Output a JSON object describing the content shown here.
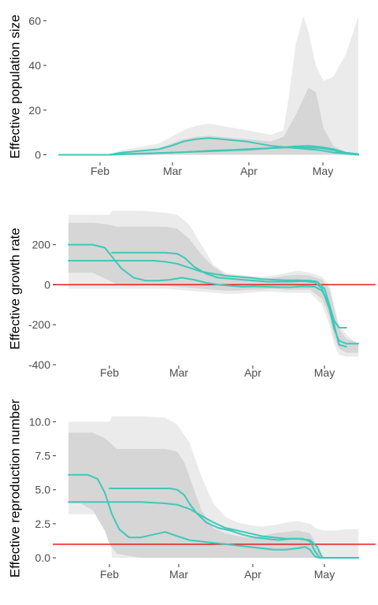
{
  "colors": {
    "line": "#3ec8b8",
    "ribbon_outer": "#ebebeb",
    "ribbon_inner": "#d6d6d6",
    "reference": "#e41a1c"
  },
  "chart_data": [
    {
      "type": "line",
      "ylabel": "Effective population size",
      "x_tick_labels": [
        "Feb",
        "Mar",
        "Apr",
        "May"
      ],
      "y_ticks": [
        0,
        20,
        40,
        60
      ],
      "ylim": [
        -3,
        64
      ],
      "grid": false,
      "reference_line": null,
      "series": [
        {
          "x": [
            0,
            10,
            20,
            25,
            30,
            35,
            40,
            45,
            50,
            55,
            60,
            65,
            70,
            75,
            80,
            85,
            90,
            95,
            100,
            105,
            110,
            115,
            120
          ],
          "y": [
            0,
            0,
            0,
            0.2,
            0.3,
            0.5,
            0.8,
            1,
            1.2,
            1.5,
            1.8,
            2,
            2.2,
            2.5,
            2.8,
            3,
            3.2,
            3.3,
            3.2,
            3,
            2,
            0.5,
            0
          ]
        },
        {
          "x": [
            0,
            10,
            20,
            25,
            30,
            35,
            40,
            45,
            50,
            55,
            60,
            65,
            70,
            75,
            80,
            85,
            90,
            95,
            100,
            105,
            110,
            115,
            120
          ],
          "y": [
            0,
            0,
            0,
            1,
            1.5,
            2,
            2.5,
            4,
            6,
            7,
            7.5,
            7,
            6.5,
            6,
            5,
            4,
            3.5,
            3,
            2.5,
            2,
            1,
            0.5,
            0
          ]
        },
        {
          "x": [
            0,
            10,
            20,
            25,
            30,
            35,
            40,
            45,
            50,
            55,
            60,
            65,
            70,
            75,
            80,
            85,
            90,
            95,
            100,
            105,
            110,
            115,
            120
          ],
          "y": [
            0,
            0,
            0,
            0.3,
            0.5,
            0.6,
            0.8,
            1,
            1.2,
            1.4,
            1.6,
            1.8,
            2,
            2.2,
            2.6,
            3,
            3.4,
            3.8,
            4,
            3.5,
            2.5,
            1,
            0.3
          ]
        }
      ],
      "ribbons": [
        {
          "layer": "outer",
          "x": [
            0,
            10,
            20,
            25,
            30,
            35,
            40,
            45,
            50,
            55,
            60,
            65,
            70,
            75,
            80,
            85,
            90,
            92,
            95,
            98,
            100,
            103,
            106,
            110,
            115,
            120
          ],
          "upper": [
            0,
            0,
            0,
            2,
            3,
            4,
            5,
            8,
            11,
            13,
            14,
            13,
            12,
            11,
            10,
            9,
            11,
            25,
            50,
            62,
            55,
            40,
            33,
            35,
            45,
            62
          ],
          "lower": [
            0,
            0,
            0,
            0,
            0,
            0,
            0,
            0,
            0,
            0,
            0,
            0,
            0,
            0,
            0,
            0,
            0,
            0,
            0,
            0,
            0,
            0,
            0,
            0,
            0,
            0
          ]
        },
        {
          "layer": "inner",
          "x": [
            0,
            10,
            20,
            25,
            30,
            35,
            40,
            45,
            50,
            55,
            60,
            65,
            70,
            75,
            80,
            85,
            90,
            95,
            100,
            103,
            106,
            110,
            115,
            120
          ],
          "upper": [
            0,
            0,
            0,
            1,
            1.5,
            2,
            3,
            5,
            7,
            8,
            8.5,
            8,
            7.5,
            7,
            6.5,
            6,
            8,
            18,
            30,
            28,
            12,
            4,
            1,
            0
          ],
          "lower": [
            0,
            0,
            0,
            0,
            0,
            0,
            0,
            0,
            0,
            0,
            0,
            0,
            0,
            0,
            0,
            0,
            0,
            0,
            0,
            0,
            0,
            0,
            0,
            0
          ]
        }
      ]
    },
    {
      "type": "line",
      "ylabel": "Effective growth rate",
      "x_tick_labels": [
        "Feb",
        "Mar",
        "Apr",
        "May"
      ],
      "y_ticks": [
        -400,
        -200,
        0,
        200
      ],
      "ylim": [
        -400,
        360
      ],
      "grid": false,
      "reference_line": {
        "y": 0
      },
      "series": [
        {
          "x": [
            0,
            5,
            10,
            15,
            18,
            22,
            27,
            32,
            37,
            42,
            47,
            52,
            57,
            62,
            67,
            72,
            77,
            82,
            87,
            92,
            97,
            102,
            105,
            108,
            110,
            112,
            115
          ],
          "y": [
            200,
            200,
            200,
            185,
            140,
            80,
            35,
            20,
            20,
            25,
            35,
            25,
            10,
            0,
            -5,
            -10,
            -8,
            -10,
            -12,
            -12,
            -8,
            -10,
            -30,
            -100,
            -180,
            -215,
            -215
          ]
        },
        {
          "x": [
            0,
            5,
            10,
            15,
            20,
            25,
            30,
            35,
            40,
            45,
            50,
            55,
            60,
            65,
            70,
            75,
            80,
            85,
            90,
            95,
            100,
            103,
            106,
            108,
            110,
            112,
            115
          ],
          "y": [
            120,
            120,
            120,
            120,
            120,
            120,
            120,
            120,
            115,
            105,
            85,
            65,
            55,
            45,
            40,
            35,
            28,
            25,
            22,
            22,
            20,
            15,
            -20,
            -100,
            -200,
            -300,
            -310
          ]
        },
        {
          "x": [
            18,
            20,
            25,
            30,
            35,
            40,
            45,
            48,
            52,
            57,
            62,
            67,
            72,
            77,
            82,
            87,
            92,
            97,
            102,
            105,
            108,
            110,
            112,
            115,
            120
          ],
          "y": [
            160,
            160,
            160,
            160,
            160,
            160,
            155,
            135,
            90,
            55,
            35,
            30,
            25,
            20,
            15,
            15,
            15,
            18,
            12,
            -20,
            -120,
            -220,
            -280,
            -295,
            -295
          ]
        }
      ],
      "ribbons": [
        {
          "layer": "outer",
          "x": [
            0,
            10,
            17,
            18,
            20,
            30,
            40,
            45,
            50,
            55,
            60,
            65,
            70,
            75,
            80,
            85,
            90,
            95,
            100,
            105,
            108,
            110,
            112,
            115,
            120
          ],
          "upper": [
            350,
            350,
            350,
            370,
            370,
            370,
            360,
            350,
            300,
            200,
            100,
            60,
            50,
            45,
            40,
            45,
            60,
            70,
            60,
            40,
            0,
            -100,
            -200,
            -250,
            -300
          ],
          "lower": [
            -20,
            -20,
            -20,
            -20,
            -20,
            -20,
            -20,
            -25,
            -30,
            -35,
            -40,
            -45,
            -45,
            -40,
            -35,
            -35,
            -40,
            -40,
            -40,
            -100,
            -200,
            -300,
            -350,
            -360,
            -360
          ]
        },
        {
          "layer": "inner",
          "x": [
            0,
            10,
            17,
            20,
            30,
            40,
            45,
            50,
            55,
            60,
            65,
            70,
            75,
            80,
            85,
            90,
            95,
            100,
            105,
            108,
            110,
            112,
            115,
            120
          ],
          "upper": [
            310,
            310,
            300,
            290,
            290,
            290,
            280,
            230,
            150,
            90,
            50,
            40,
            35,
            30,
            35,
            45,
            50,
            45,
            25,
            -20,
            -120,
            -220,
            -270,
            -290
          ],
          "lower": [
            60,
            60,
            20,
            0,
            0,
            -5,
            -10,
            -15,
            -20,
            -25,
            -30,
            -30,
            -25,
            -25,
            -20,
            -25,
            -25,
            -25,
            -70,
            -160,
            -260,
            -320,
            -340,
            -340
          ]
        }
      ]
    },
    {
      "type": "line",
      "ylabel": "Effective reproduction number",
      "x_tick_labels": [
        "Feb",
        "Mar",
        "Apr",
        "May"
      ],
      "y_ticks": [
        0,
        2.5,
        5,
        7.5,
        10
      ],
      "ylim": [
        -0.4,
        10.6
      ],
      "grid": false,
      "reference_line": {
        "y": 1
      },
      "series": [
        {
          "x": [
            0,
            5,
            8,
            12,
            15,
            18,
            21,
            25,
            30,
            35,
            40,
            45,
            50,
            55,
            60,
            65,
            70,
            75,
            80,
            85,
            90,
            95,
            98,
            100,
            102,
            104,
            106,
            108,
            110,
            112,
            115,
            120
          ],
          "y": [
            6.1,
            6.1,
            6.1,
            5.8,
            4.8,
            3.2,
            2.1,
            1.5,
            1.5,
            1.7,
            1.9,
            1.6,
            1.3,
            1.2,
            1.1,
            1,
            0.9,
            0.8,
            0.7,
            0.6,
            0.6,
            0.7,
            0.8,
            0.6,
            0.1,
            0,
            0,
            0,
            0,
            0,
            0,
            0
          ]
        },
        {
          "x": [
            0,
            5,
            10,
            15,
            20,
            25,
            30,
            35,
            40,
            45,
            50,
            55,
            60,
            65,
            70,
            75,
            80,
            85,
            90,
            95,
            100,
            103,
            105,
            108,
            110,
            115,
            120
          ],
          "y": [
            4.1,
            4.1,
            4.1,
            4.1,
            4.1,
            4.1,
            4.1,
            4.05,
            4,
            3.9,
            3.6,
            3.1,
            2.6,
            2.2,
            2,
            1.8,
            1.6,
            1.5,
            1.4,
            1.4,
            1.3,
            0.8,
            0,
            0,
            0,
            0,
            0
          ]
        },
        {
          "x": [
            17,
            18,
            22,
            27,
            32,
            37,
            42,
            45,
            48,
            50,
            53,
            57,
            62,
            67,
            72,
            77,
            82,
            87,
            92,
            97,
            100,
            102,
            104,
            106,
            108,
            110,
            115,
            120
          ],
          "y": [
            5.1,
            5.1,
            5.1,
            5.1,
            5.1,
            5.1,
            5.1,
            5,
            4.6,
            4,
            3.3,
            2.6,
            2.2,
            2,
            1.7,
            1.5,
            1.4,
            1.3,
            1.4,
            1.4,
            1.2,
            0.5,
            0,
            0,
            0,
            0,
            0,
            0
          ]
        }
      ],
      "ribbons": [
        {
          "layer": "outer",
          "x": [
            0,
            10,
            17,
            18,
            20,
            30,
            40,
            45,
            50,
            55,
            60,
            65,
            70,
            75,
            80,
            85,
            90,
            95,
            100,
            103,
            106,
            110,
            115,
            120
          ],
          "upper": [
            10,
            10,
            10,
            10.4,
            10.4,
            10.4,
            10.3,
            9.8,
            8.5,
            6,
            4,
            3,
            2.6,
            2.4,
            2.3,
            2.4,
            2.6,
            2.7,
            2.5,
            2.1,
            2,
            2,
            2.1,
            2.1
          ],
          "lower": [
            3.2,
            3.2,
            3.2,
            0,
            0,
            0,
            0,
            0,
            0,
            0,
            0,
            0,
            0,
            0,
            0,
            0,
            0,
            0,
            0,
            0,
            0,
            0,
            0,
            0
          ]
        },
        {
          "layer": "inner",
          "x": [
            0,
            5,
            10,
            15,
            17,
            20,
            30,
            40,
            45,
            48,
            52,
            55,
            60,
            65,
            70,
            75,
            80,
            85,
            90,
            95,
            100,
            102,
            104,
            106,
            110,
            120
          ],
          "upper": [
            9.2,
            9.2,
            9.2,
            8.8,
            8.5,
            8,
            8,
            8,
            7.8,
            7,
            5,
            3.5,
            2.2,
            1.8,
            1.6,
            1.5,
            1.6,
            1.8,
            1.9,
            2,
            1.8,
            1.2,
            0.5,
            0,
            0,
            0
          ],
          "lower": [
            4,
            4,
            3.5,
            2,
            1,
            0.3,
            0,
            0,
            0,
            0,
            0,
            0,
            0,
            0,
            0,
            0,
            0,
            0,
            0,
            0,
            0,
            0,
            0,
            0,
            0,
            0
          ]
        }
      ]
    }
  ]
}
